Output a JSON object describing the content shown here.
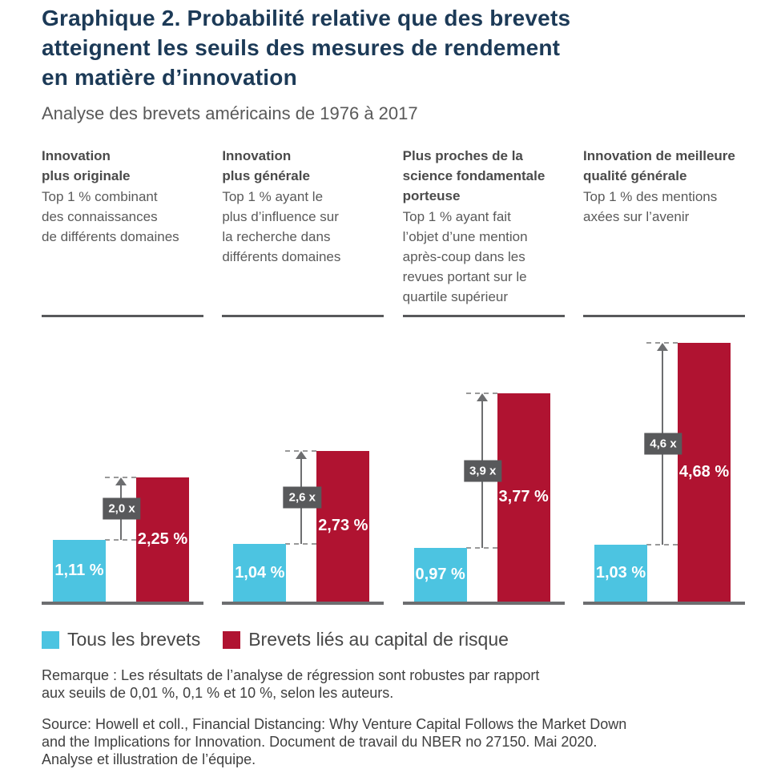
{
  "header": {
    "title": "Graphique 2. Probabilité relative que des brevets\natteignent les seuils des mesures de rendement\nen matière d’innovation",
    "subtitle": "Analyse des brevets américains de 1976 à 2017"
  },
  "colors": {
    "title": "#1C3A57",
    "all_patents": "#4CC4E1",
    "vc_patents": "#B01331",
    "multiplier_box": "#58595B",
    "axis": "#6D6E70",
    "divider": "#58595B"
  },
  "chart_data": {
    "type": "bar",
    "unit": "%",
    "ylim": [
      0,
      5
    ],
    "grid": false,
    "legend_position": "bottom",
    "series_names": [
      "Tous les brevets",
      "Brevets liés au capital de risque"
    ],
    "groups": [
      {
        "heading": "Innovation\nplus originale",
        "description": "Top 1 % combinant\ndes connaissances\nde différents domaines",
        "all_value": 1.11,
        "all_label": "1,11 %",
        "vc_value": 2.25,
        "vc_label": "2,25 %",
        "multiplier": "2,0 x"
      },
      {
        "heading": "Innovation\nplus générale",
        "description": "Top 1 % ayant le\nplus d’influence sur\nla recherche dans\ndifférents domaines",
        "all_value": 1.04,
        "all_label": "1,04 %",
        "vc_value": 2.73,
        "vc_label": "2,73 %",
        "multiplier": "2,6 x"
      },
      {
        "heading": "Plus proches de la\nscience fondamentale\nporteuse",
        "description": "Top 1 % ayant fait\nl’objet d’une mention\naprès-coup dans les\nrevues portant sur le\nquartile supérieur",
        "all_value": 0.97,
        "all_label": "0,97 %",
        "vc_value": 3.77,
        "vc_label": "3,77 %",
        "multiplier": "3,9 x"
      },
      {
        "heading": "Innovation de meilleure\nqualité générale",
        "description": "Top 1 % des mentions\naxées sur l’avenir",
        "all_value": 1.03,
        "all_label": "1,03 %",
        "vc_value": 4.68,
        "vc_label": "4,68 %",
        "multiplier": "4,6 x"
      }
    ]
  },
  "legend": {
    "items": [
      {
        "label": "Tous les brevets",
        "color": "#4CC4E1"
      },
      {
        "label": "Brevets liés au capital de risque",
        "color": "#B01331"
      }
    ]
  },
  "notes": {
    "remark": "Remarque : Les résultats de l’analyse de régression sont robustes par rapport\naux seuils de 0,01 %, 0,1 % et 10 %, selon les auteurs.",
    "source": "Source: Howell et coll., Financial Distancing: Why Venture Capital Follows the Market Down\nand the Implications for Innovation. Document de travail du NBER no 27150. Mai 2020.\nAnalyse et illustration de l’équipe."
  }
}
